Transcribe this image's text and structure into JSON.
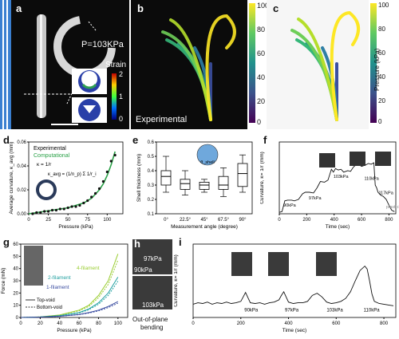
{
  "labels": {
    "a": "a",
    "b": "b",
    "c": "c",
    "d": "d",
    "e": "e",
    "f": "f",
    "g": "g",
    "h": "h",
    "i": "i"
  },
  "panel_a": {
    "pressure_text": "P=103KPa",
    "strain_title": "Strain",
    "strain_ticks": [
      "2",
      "1",
      "0"
    ]
  },
  "panel_b": {
    "caption": "Experimental",
    "cbar_ticks": [
      "100",
      "80",
      "60",
      "40",
      "20",
      "0"
    ]
  },
  "panel_c": {
    "cbar_ticks": [
      "100",
      "80",
      "60",
      "40",
      "20",
      "0"
    ],
    "cbar_label": "Pressure (kPa)"
  },
  "panel_h": {
    "p1": "97kPa",
    "p2": "90kPa",
    "p3": "103kPa",
    "caption1": "Out-of-plane",
    "caption2": "bending"
  },
  "panel_f": {
    "plasticity": "plasticity"
  },
  "chart_data": [
    {
      "id": "d",
      "type": "line",
      "xlabel": "Pressure (kPa)",
      "ylabel": "Average curvature, κ_avg (mm)",
      "xlim": [
        0,
        120
      ],
      "ylim": [
        0,
        0.06
      ],
      "xticks": [
        0,
        25,
        50,
        75,
        100
      ],
      "yticks": [
        0.0,
        0.02,
        0.04,
        0.06
      ],
      "series": [
        {
          "name": "Experimental",
          "color": "#111111",
          "x": [
            5,
            10,
            15,
            20,
            25,
            30,
            35,
            40,
            45,
            50,
            55,
            60,
            65,
            70,
            75,
            80,
            85,
            90,
            95,
            100,
            105,
            110
          ],
          "y": [
            0.0,
            0.001,
            0.001,
            0.002,
            0.002,
            0.003,
            0.003,
            0.004,
            0.004,
            0.005,
            0.006,
            0.006,
            0.007,
            0.009,
            0.011,
            0.014,
            0.017,
            0.021,
            0.027,
            0.035,
            0.044,
            0.049
          ]
        },
        {
          "name": "Computational",
          "color": "#2aa147",
          "x": [
            0,
            10,
            20,
            30,
            40,
            50,
            60,
            70,
            80,
            90,
            95,
            100,
            105,
            110
          ],
          "y": [
            0.0,
            0.001,
            0.002,
            0.003,
            0.004,
            0.005,
            0.007,
            0.009,
            0.013,
            0.02,
            0.025,
            0.032,
            0.041,
            0.052
          ]
        }
      ],
      "annotations": [
        "κ = 1/r",
        "κ_avg = (1/n_p) Σ 1/r_i"
      ]
    },
    {
      "id": "e",
      "type": "box",
      "xlabel": "Measurement angle (degree)",
      "ylabel": "Shell thickness (mm)",
      "ylim": [
        0.1,
        0.6
      ],
      "yticks": [
        0.1,
        0.2,
        0.3,
        0.4,
        0.5,
        0.6
      ],
      "categories": [
        "0°",
        "22.5°",
        "45°",
        "67.5°",
        "90°"
      ],
      "boxes": [
        {
          "min": 0.25,
          "q1": 0.3,
          "median": 0.36,
          "q3": 0.4,
          "max": 0.5
        },
        {
          "min": 0.23,
          "q1": 0.27,
          "median": 0.31,
          "q3": 0.34,
          "max": 0.4
        },
        {
          "min": 0.25,
          "q1": 0.27,
          "median": 0.3,
          "q3": 0.32,
          "max": 0.34
        },
        {
          "min": 0.22,
          "q1": 0.27,
          "median": 0.3,
          "q3": 0.36,
          "max": 0.42
        },
        {
          "min": 0.25,
          "q1": 0.29,
          "median": 0.38,
          "q3": 0.45,
          "max": 0.51
        }
      ],
      "inset_label": "θ_shell"
    },
    {
      "id": "f",
      "type": "line",
      "xlabel": "Time (sec)",
      "ylabel": "Curvature, κ= 1/r (mm)",
      "xlim": [
        0,
        850
      ],
      "ylim": [
        0,
        1
      ],
      "xticks": [
        0,
        200,
        400,
        600,
        800
      ],
      "series": [
        {
          "name": "",
          "color": "#111111",
          "x": [
            0,
            20,
            40,
            60,
            90,
            110,
            140,
            170,
            190,
            220,
            250,
            275,
            300,
            330,
            355,
            380,
            395,
            410,
            430,
            450,
            470,
            500,
            520,
            540,
            570,
            600,
            630,
            650,
            670,
            690,
            700,
            710,
            720,
            740,
            760,
            780,
            800,
            820,
            840
          ],
          "y": [
            0.02,
            0.03,
            0.18,
            0.19,
            0.19,
            0.18,
            0.2,
            0.28,
            0.3,
            0.3,
            0.29,
            0.36,
            0.45,
            0.44,
            0.47,
            0.62,
            0.58,
            0.63,
            0.61,
            0.62,
            0.58,
            0.6,
            0.59,
            0.65,
            0.7,
            0.66,
            0.68,
            0.7,
            0.69,
            0.71,
            0.4,
            0.36,
            0.3,
            0.26,
            0.24,
            0.2,
            0.12,
            0.05,
            0.03
          ]
        }
      ],
      "annotations": [
        "90kPa",
        "97kPa",
        "103kPa",
        "110kPa",
        "117kPa"
      ]
    },
    {
      "id": "g",
      "type": "line",
      "xlabel": "Pressure (kPa)",
      "ylabel": "Force (mN)",
      "xlim": [
        0,
        110
      ],
      "ylim": [
        0,
        60
      ],
      "xticks": [
        0,
        20,
        40,
        60,
        80,
        100
      ],
      "yticks": [
        0,
        10,
        20,
        30,
        40,
        50,
        60
      ],
      "series": [
        {
          "name": "4-filament",
          "color": "#9acd32",
          "x": [
            0,
            20,
            40,
            60,
            70,
            80,
            90,
            100
          ],
          "y": [
            0,
            0.5,
            2,
            6,
            10,
            18,
            30,
            52
          ]
        },
        {
          "name": "2-filament",
          "color": "#20a0a0",
          "x": [
            0,
            20,
            40,
            60,
            70,
            80,
            90,
            100
          ],
          "y": [
            0,
            0.4,
            1.5,
            4,
            7,
            12,
            20,
            33
          ]
        },
        {
          "name": "1-filament",
          "color": "#3a4ca0",
          "x": [
            0,
            20,
            40,
            60,
            70,
            80,
            90,
            100
          ],
          "y": [
            0,
            0.3,
            1,
            2.5,
            4,
            6,
            9,
            13
          ]
        }
      ],
      "legend": [
        "Top-void",
        "Bottom-void"
      ]
    },
    {
      "id": "i",
      "type": "line",
      "xlabel": "Time (sec)",
      "ylabel": "Curvature, κ= 1/r (mm)",
      "xlim": [
        0,
        850
      ],
      "ylim": [
        0,
        1
      ],
      "xticks": [
        0,
        200,
        400,
        600,
        800
      ],
      "series": [
        {
          "name": "",
          "color": "#111111",
          "x": [
            0,
            20,
            40,
            60,
            80,
            100,
            120,
            140,
            160,
            180,
            200,
            210,
            220,
            230,
            240,
            260,
            280,
            300,
            320,
            340,
            360,
            370,
            380,
            390,
            400,
            420,
            440,
            460,
            480,
            500,
            520,
            540,
            560,
            580,
            600,
            620,
            640,
            660,
            680,
            700,
            720,
            730,
            740,
            750,
            760,
            780,
            800,
            820,
            840
          ],
          "y": [
            0.18,
            0.2,
            0.19,
            0.21,
            0.18,
            0.2,
            0.19,
            0.21,
            0.19,
            0.2,
            0.22,
            0.28,
            0.34,
            0.27,
            0.2,
            0.19,
            0.2,
            0.18,
            0.2,
            0.21,
            0.24,
            0.3,
            0.35,
            0.28,
            0.21,
            0.19,
            0.2,
            0.2,
            0.22,
            0.3,
            0.33,
            0.28,
            0.21,
            0.19,
            0.2,
            0.22,
            0.26,
            0.35,
            0.5,
            0.64,
            0.7,
            0.66,
            0.5,
            0.32,
            0.22,
            0.19,
            0.18,
            0.17,
            0.16
          ]
        }
      ],
      "annotations": [
        "90kPa",
        "97kPa",
        "103kPa",
        "110kPa"
      ]
    }
  ]
}
